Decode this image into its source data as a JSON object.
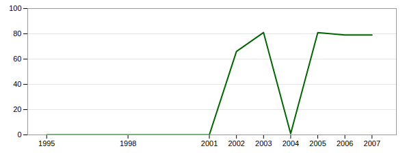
{
  "chart_data": {
    "type": "line",
    "x": [
      1995,
      1998,
      2001,
      2002,
      2003,
      2004,
      2005,
      2006,
      2007
    ],
    "values": [
      0,
      0,
      0,
      66,
      81,
      1,
      81,
      79,
      79
    ],
    "color": "#006600",
    "xlim": [
      1994.3,
      2007.9
    ],
    "ylim": [
      0,
      100
    ],
    "xticks": [
      1995,
      1998,
      2001,
      2002,
      2003,
      2004,
      2005,
      2006,
      2007
    ],
    "yticks": [
      0,
      20,
      40,
      60,
      80,
      100
    ],
    "grid": "y"
  }
}
